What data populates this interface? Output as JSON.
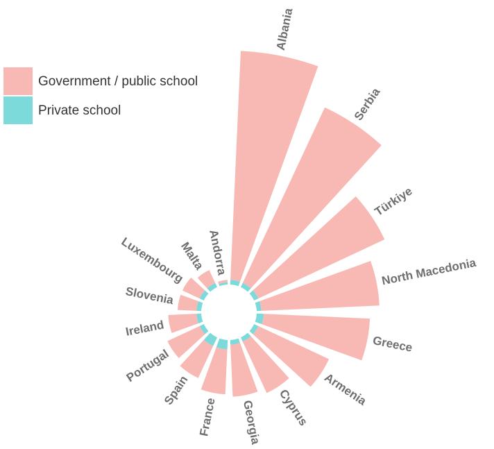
{
  "chart_data": {
    "type": "radial_bar",
    "categories": [
      "Albania",
      "Serbia",
      "Türkiye",
      "North Macedonia",
      "Greece",
      "Armenia",
      "Cyprus",
      "Georgia",
      "France",
      "Spain",
      "Portugal",
      "Ireland",
      "Slovenia",
      "Luxembourg",
      "Malta",
      "Andorra"
    ],
    "series": [
      {
        "name": "Government / public school",
        "color": "#f8b9b4",
        "values": [
          97,
          82,
          59,
          50,
          45,
          33,
          24,
          22,
          19,
          15,
          15,
          12,
          8,
          8,
          6,
          1
        ]
      },
      {
        "name": "Private school",
        "color": "#7ddada",
        "values": [
          2,
          2,
          2,
          2,
          3,
          2,
          2,
          2,
          4,
          4,
          2,
          2,
          2,
          2,
          2,
          1
        ]
      }
    ],
    "stacked": true
  }
}
